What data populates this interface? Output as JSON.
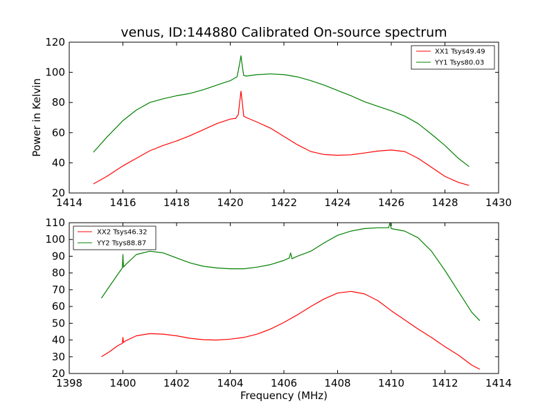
{
  "chart_data": [
    {
      "type": "line",
      "title": "venus, ID:144880 Calibrated On-source spectrum",
      "xlabel": "",
      "ylabel": "Power in Kelvin",
      "xlim": [
        1414,
        1430
      ],
      "ylim": [
        20,
        120
      ],
      "xticks": [
        1414,
        1416,
        1418,
        1420,
        1422,
        1424,
        1426,
        1428,
        1430
      ],
      "yticks": [
        20,
        40,
        60,
        80,
        100,
        120
      ],
      "grid": false,
      "legend_position": "top-right",
      "series": [
        {
          "name": "XX1 Tsys49.49",
          "color": "#ff0000",
          "x": [
            1414.9,
            1415.4,
            1416.0,
            1416.5,
            1417.0,
            1417.5,
            1418.0,
            1418.5,
            1419.0,
            1419.5,
            1420.0,
            1420.2,
            1420.3,
            1420.35,
            1420.4,
            1420.45,
            1420.5,
            1420.6,
            1421.0,
            1421.5,
            1422.0,
            1422.5,
            1423.0,
            1423.5,
            1424.0,
            1424.5,
            1425.0,
            1425.5,
            1426.0,
            1426.5,
            1427.0,
            1427.5,
            1428.0,
            1428.5,
            1428.9
          ],
          "y": [
            26,
            31,
            38,
            43,
            48,
            51.5,
            54.5,
            58,
            62,
            66,
            69,
            69.5,
            72,
            80,
            87.5,
            80,
            71,
            70,
            67,
            63,
            57.5,
            52,
            47.5,
            45.5,
            45,
            45.3,
            46.5,
            47.8,
            48.5,
            47.5,
            43,
            37,
            31,
            27,
            25
          ]
        },
        {
          "name": "YY1 Tsys80.03",
          "color": "#008000",
          "x": [
            1414.9,
            1415.4,
            1416.0,
            1416.5,
            1417.0,
            1417.5,
            1418.0,
            1418.5,
            1419.0,
            1419.5,
            1420.0,
            1420.25,
            1420.3,
            1420.35,
            1420.4,
            1420.45,
            1420.5,
            1420.6,
            1421.0,
            1421.5,
            1422.0,
            1422.5,
            1423.0,
            1423.5,
            1424.0,
            1424.5,
            1425.0,
            1425.5,
            1426.0,
            1426.5,
            1427.0,
            1427.5,
            1428.0,
            1428.5,
            1428.9
          ],
          "y": [
            47,
            57,
            68,
            75,
            80,
            82.5,
            84.5,
            86,
            88.5,
            91.5,
            94.5,
            97,
            101,
            106,
            111,
            104,
            98,
            97.5,
            98.5,
            99,
            98.5,
            97,
            94.5,
            91.5,
            88,
            84.5,
            80.5,
            77.5,
            74.5,
            71,
            66,
            59,
            51.5,
            43,
            37.5
          ]
        }
      ]
    },
    {
      "type": "line",
      "title": "",
      "xlabel": "Frequency (MHz)",
      "ylabel": "",
      "xlim": [
        1398,
        1414
      ],
      "ylim": [
        20,
        110
      ],
      "xticks": [
        1398,
        1400,
        1402,
        1404,
        1406,
        1408,
        1410,
        1412,
        1414
      ],
      "yticks": [
        20,
        30,
        40,
        50,
        60,
        70,
        80,
        90,
        100,
        110
      ],
      "grid": false,
      "legend_position": "top-left",
      "series": [
        {
          "name": "XX2 Tsys46.32",
          "color": "#ff0000",
          "x": [
            1399.2,
            1399.5,
            1399.8,
            1399.98,
            1400.0,
            1400.02,
            1400.1,
            1400.5,
            1401.0,
            1401.5,
            1402.0,
            1402.5,
            1403.0,
            1403.5,
            1404.0,
            1404.5,
            1405.0,
            1405.5,
            1406.0,
            1406.5,
            1407.0,
            1407.5,
            1408.0,
            1408.5,
            1409.0,
            1409.5,
            1410.0,
            1410.5,
            1411.0,
            1411.5,
            1412.0,
            1412.5,
            1413.0,
            1413.3
          ],
          "y": [
            30,
            33,
            36.5,
            38,
            41.5,
            38.5,
            39.5,
            42.5,
            43.8,
            43.5,
            42.5,
            41,
            40.2,
            40,
            40.5,
            41.5,
            43.5,
            46.5,
            50.5,
            55,
            60,
            64.5,
            68,
            69,
            67.5,
            63.5,
            57.5,
            52,
            46.5,
            41.5,
            36,
            31,
            25,
            22.5
          ]
        },
        {
          "name": "YY2 Tsys88.87",
          "color": "#008000",
          "x": [
            1399.2,
            1399.5,
            1399.8,
            1399.98,
            1400.0,
            1400.02,
            1400.1,
            1400.5,
            1401.0,
            1401.5,
            1402.0,
            1402.5,
            1403.0,
            1403.5,
            1404.0,
            1404.5,
            1405.0,
            1405.5,
            1406.0,
            1406.2,
            1406.25,
            1406.3,
            1406.5,
            1407.0,
            1407.5,
            1408.0,
            1408.5,
            1409.0,
            1409.5,
            1409.9,
            1409.95,
            1410.0,
            1410.5,
            1411.0,
            1411.5,
            1412.0,
            1412.5,
            1413.0,
            1413.3
          ],
          "y": [
            65,
            72,
            79,
            83,
            91,
            83.5,
            85,
            91,
            93,
            92,
            89,
            86,
            84,
            83,
            82.5,
            82.5,
            83.5,
            85,
            87.5,
            89,
            92,
            88.5,
            90,
            93,
            98,
            102.5,
            105,
            106.5,
            107,
            107,
            110,
            106.5,
            105,
            101,
            93,
            81.5,
            69,
            56.5,
            51.5
          ]
        }
      ]
    }
  ]
}
